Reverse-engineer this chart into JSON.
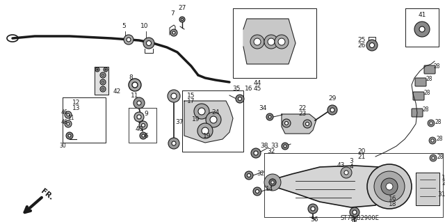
{
  "bg_color": "#ffffff",
  "fg_color": "#1a1a1a",
  "diagram_code": "ST73-B2900E",
  "figsize": [
    6.4,
    3.19
  ],
  "dpi": 100
}
